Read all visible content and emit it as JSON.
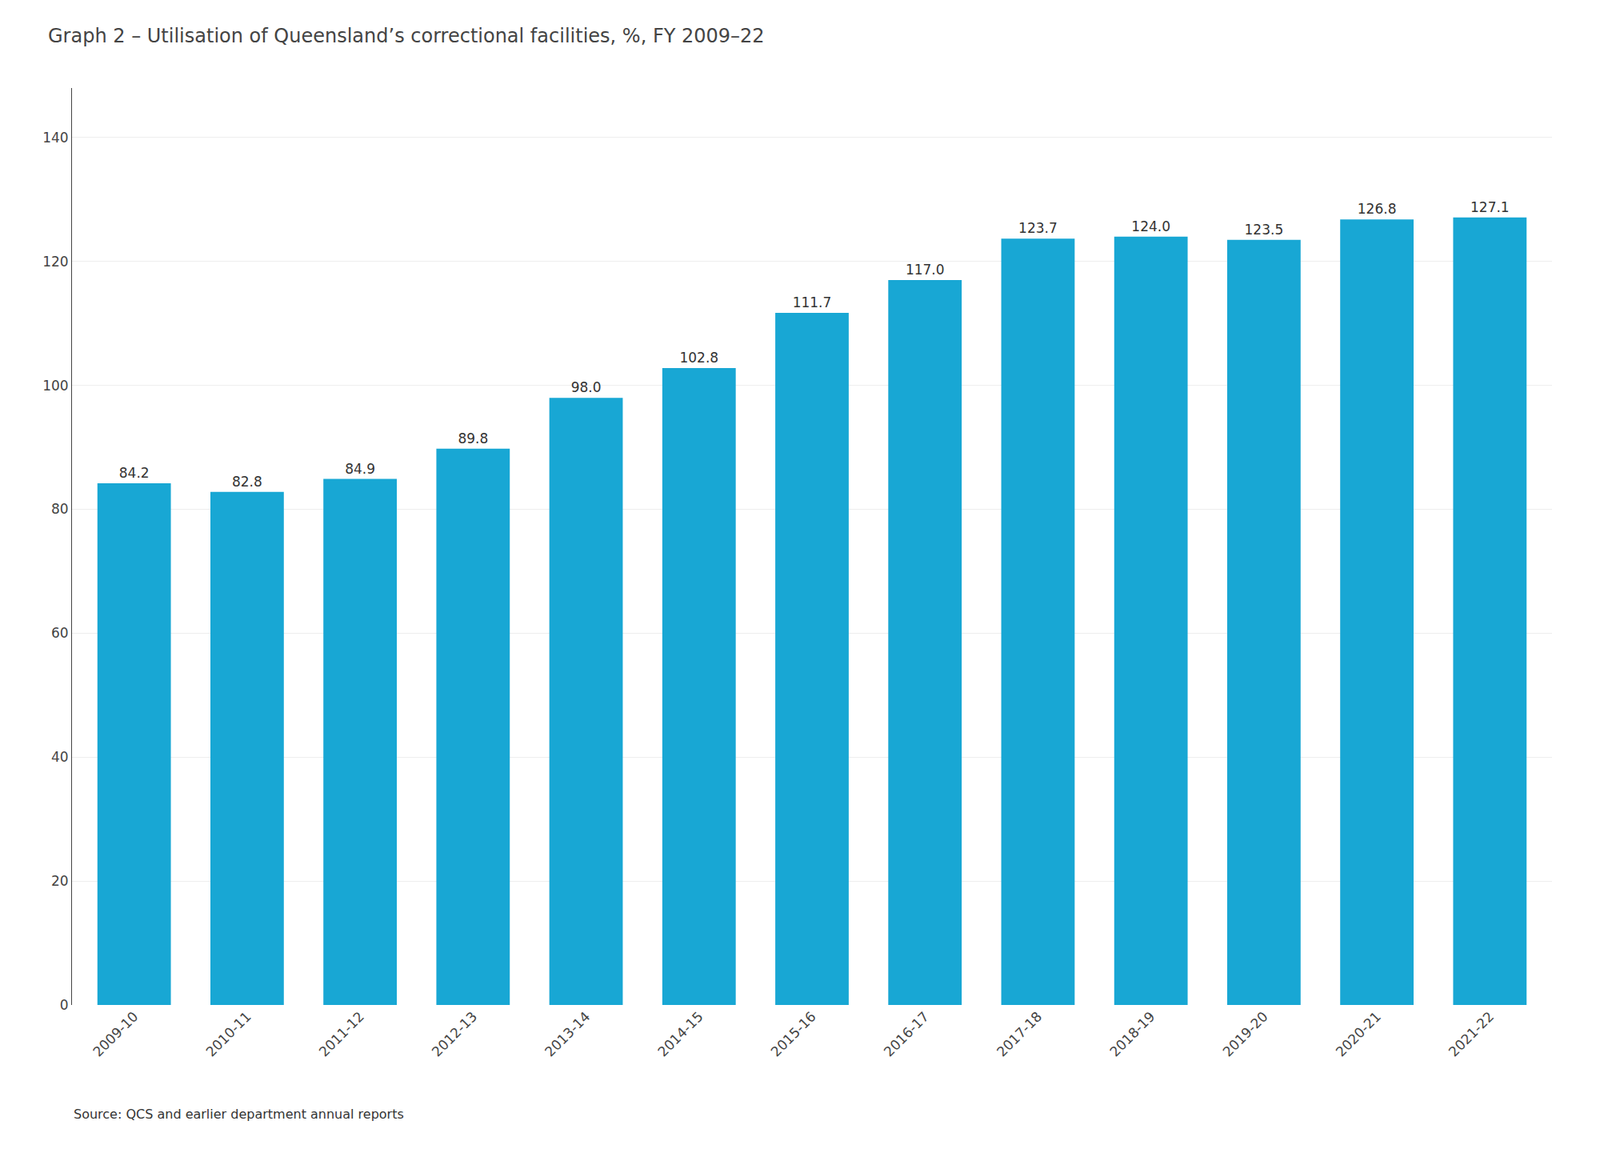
{
  "chart_data": {
    "type": "bar",
    "title": "Graph 2 – Utilisation of Queensland’s correctional facilities, %, FY 2009–22",
    "source": "Source: QCS and earlier department annual reports",
    "categories": [
      "2009-10",
      "2010-11",
      "2011-12",
      "2012-13",
      "2013-14",
      "2014-15",
      "2015-16",
      "2016-17",
      "2017-18",
      "2018-19",
      "2019-20",
      "2020-21",
      "2021-22"
    ],
    "values": [
      84.2,
      82.8,
      84.9,
      89.8,
      98.0,
      102.8,
      111.7,
      117.0,
      123.7,
      124.0,
      123.5,
      126.8,
      127.1
    ],
    "value_labels": [
      "84.2",
      "82.8",
      "84.9",
      "89.8",
      "98.0",
      "102.8",
      "111.7",
      "117.0",
      "123.7",
      "124.0",
      "123.5",
      "126.8",
      "127.1"
    ],
    "data_labels": true,
    "color": "#18a7d4",
    "ylim": [
      0,
      148
    ],
    "yticks": [
      0,
      20,
      40,
      60,
      80,
      100,
      120,
      140
    ],
    "grid": true
  }
}
